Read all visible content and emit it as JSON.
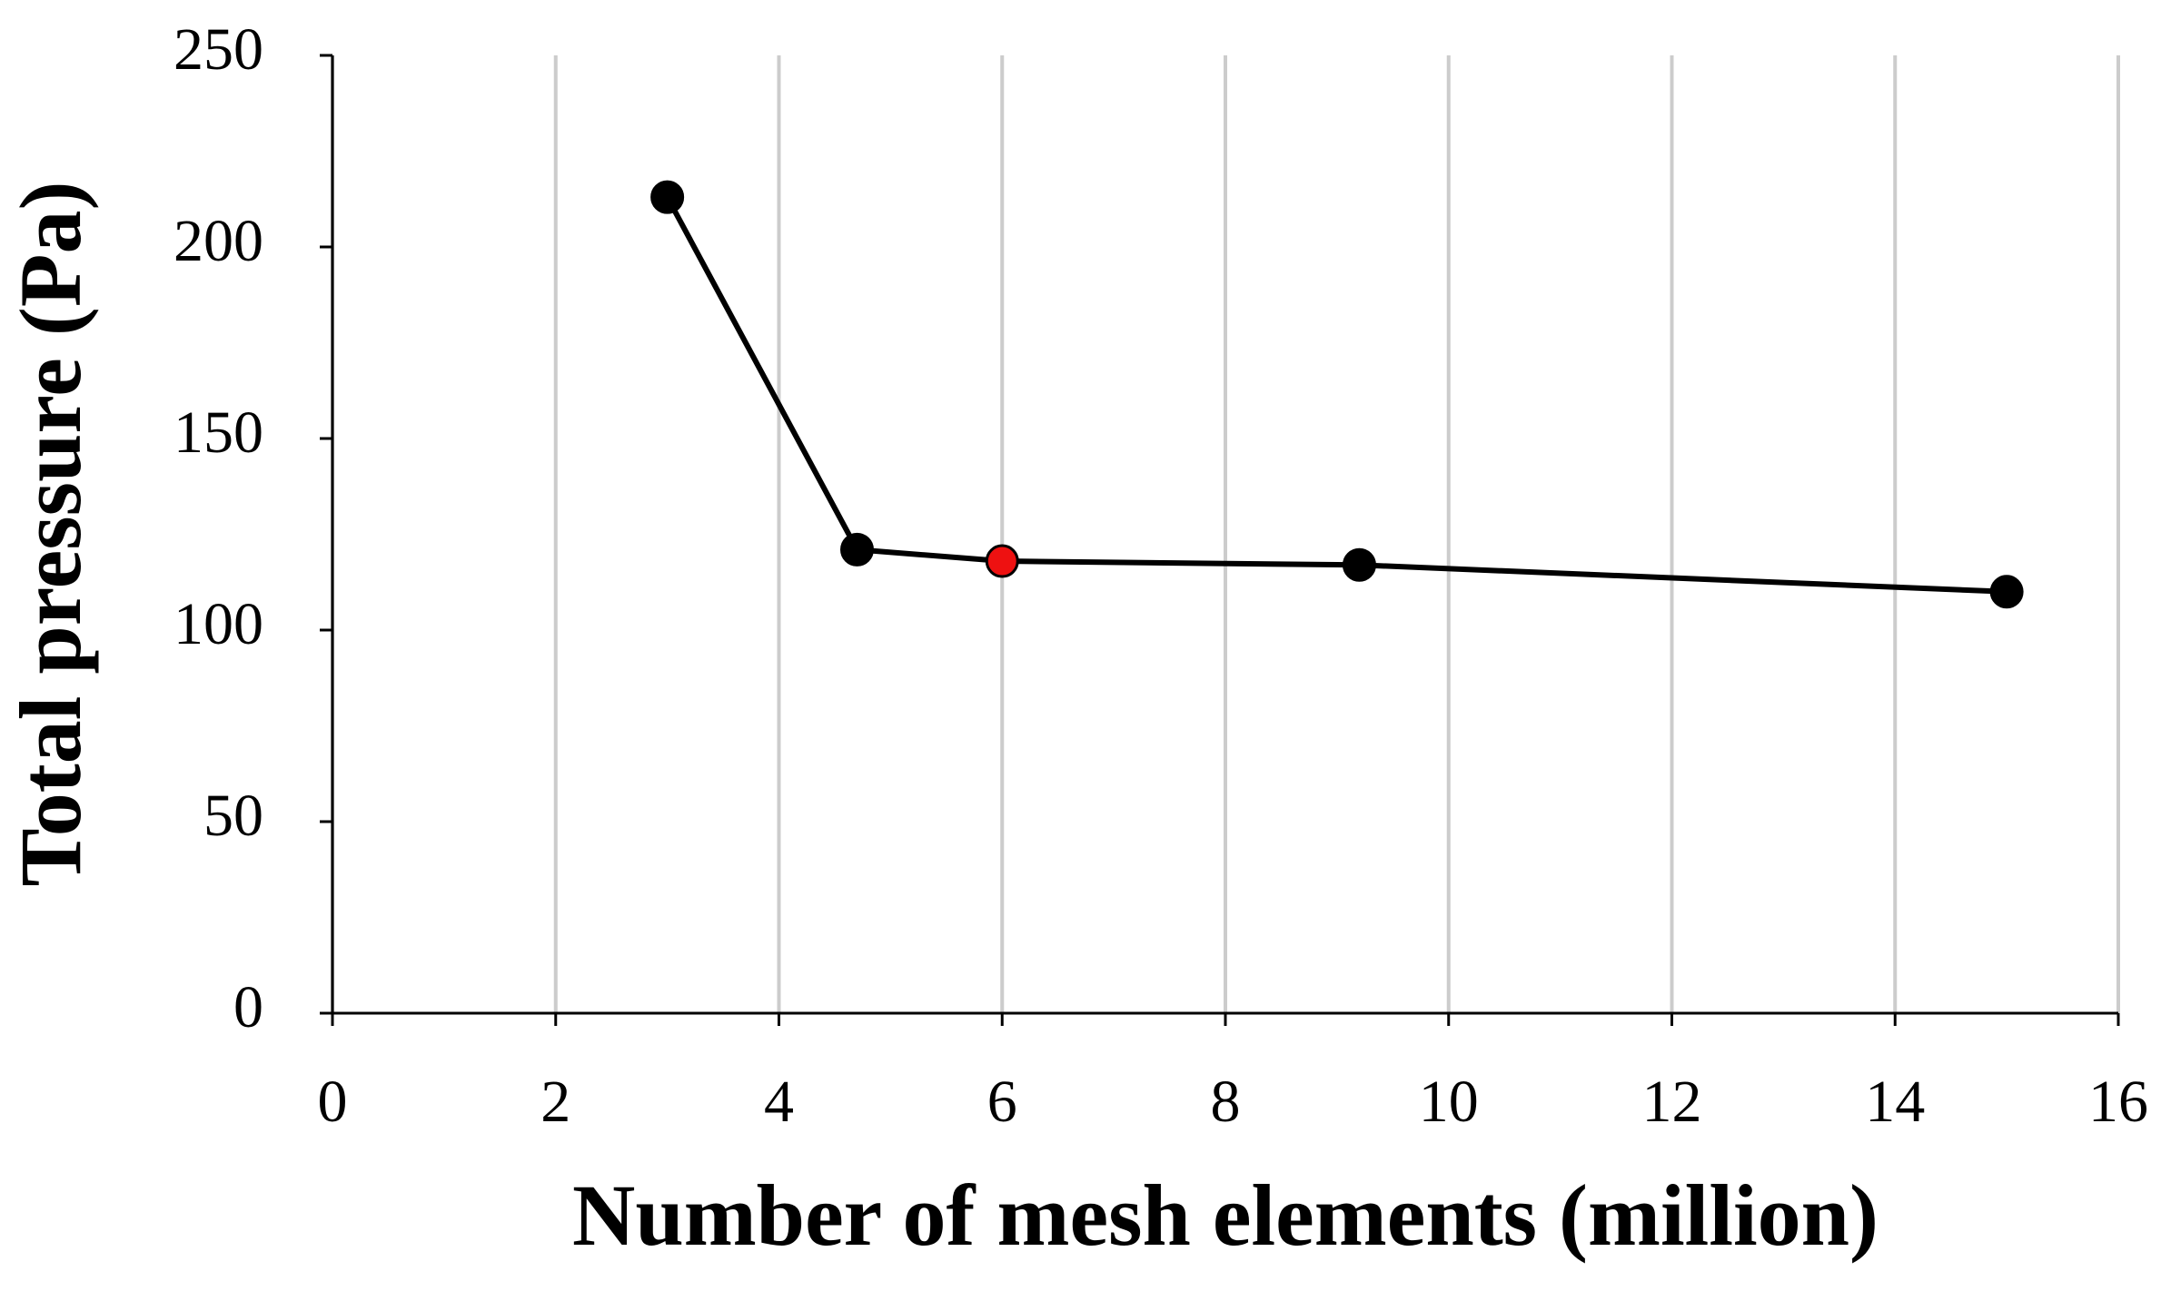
{
  "chart_data": {
    "type": "line",
    "x_label": "Number of mesh elements (million)",
    "y_label": "Total pressure (Pa)",
    "x": [
      3,
      4.7,
      6,
      9.2,
      15
    ],
    "series": [
      {
        "color": "#000000",
        "values": [
          213,
          121,
          118,
          117,
          110
        ]
      }
    ],
    "marker_colors": [
      "#000000",
      "#000000",
      "#ee1111",
      "#000000",
      "#000000"
    ],
    "xlim": [
      0,
      16
    ],
    "xticks": [
      0,
      2,
      4,
      6,
      8,
      10,
      12,
      14,
      16
    ],
    "ylim": [
      0,
      250
    ],
    "yticks": [
      0,
      50,
      100,
      150,
      200,
      250
    ],
    "grid": "x",
    "grid_color": "#cccccc"
  }
}
